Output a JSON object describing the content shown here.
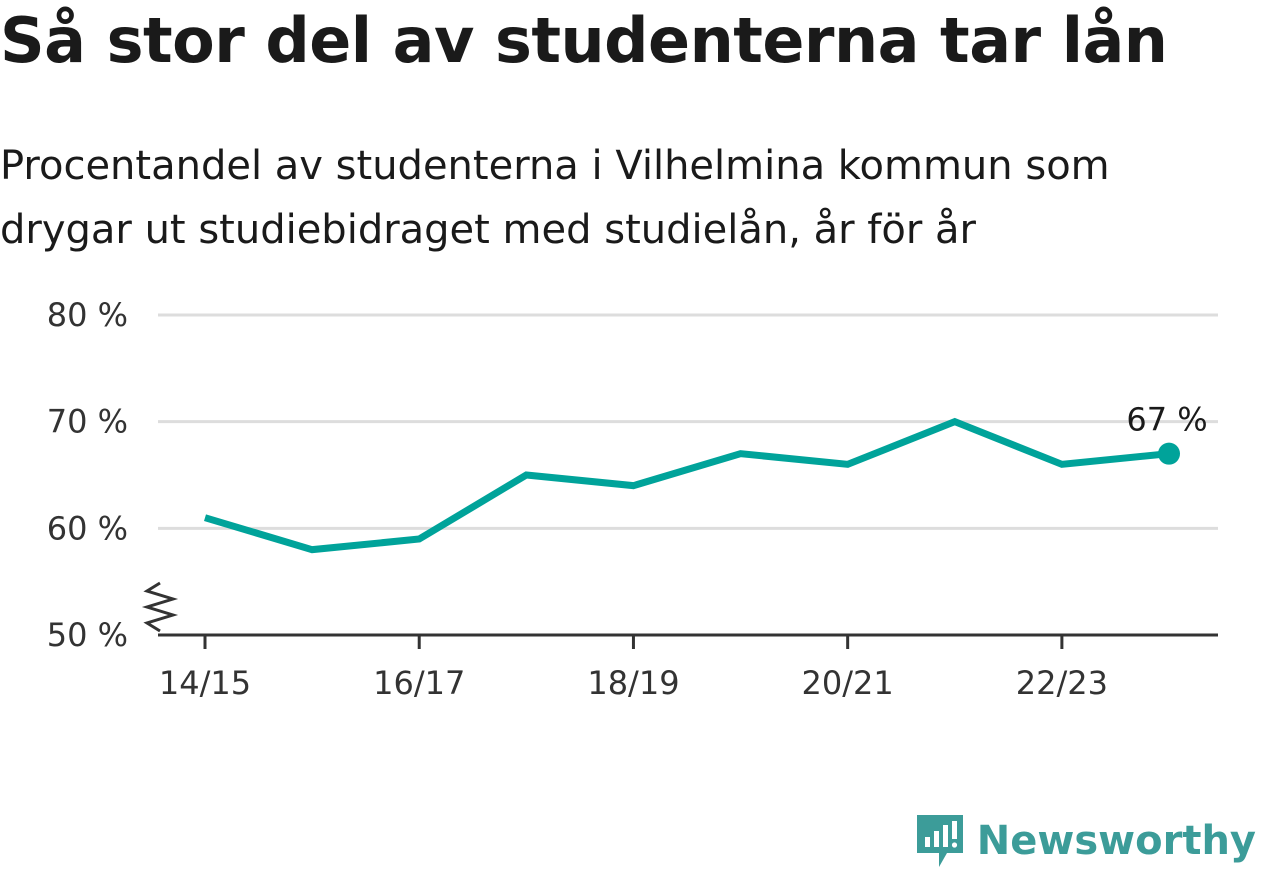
{
  "title": "Så stor del av studenterna tar lån",
  "subtitle": "Procentandel av studenterna i Vilhelmina kommun som drygar ut studiebidraget med studielån, år för år",
  "brand": "Newsworthy",
  "colors": {
    "line": "#00a39a",
    "grid": "#dddddd",
    "axis": "#333333",
    "brand": "#3c9c99"
  },
  "chart_data": {
    "type": "line",
    "title": "Så stor del av studenterna tar lån",
    "subtitle": "Procentandel av studenterna i Vilhelmina kommun som drygar ut studiebidraget med studielån, år för år",
    "xlabel": "",
    "ylabel": "",
    "categories": [
      "14/15",
      "15/16",
      "16/17",
      "17/18",
      "18/19",
      "19/20",
      "20/21",
      "21/22",
      "22/23",
      "23/24"
    ],
    "x_tick_labels": [
      "14/15",
      "16/17",
      "18/19",
      "20/21",
      "22/23"
    ],
    "series": [
      {
        "values": [
          61,
          58,
          59,
          65,
          64,
          67,
          66,
          70,
          66,
          67
        ]
      }
    ],
    "ylim": [
      50,
      80
    ],
    "y_ticks": [
      50,
      60,
      70,
      80
    ],
    "y_tick_labels": [
      "50 %",
      "60 %",
      "70 %",
      "80 %"
    ],
    "end_label": "67 %",
    "grid": true,
    "axis_break": true
  }
}
